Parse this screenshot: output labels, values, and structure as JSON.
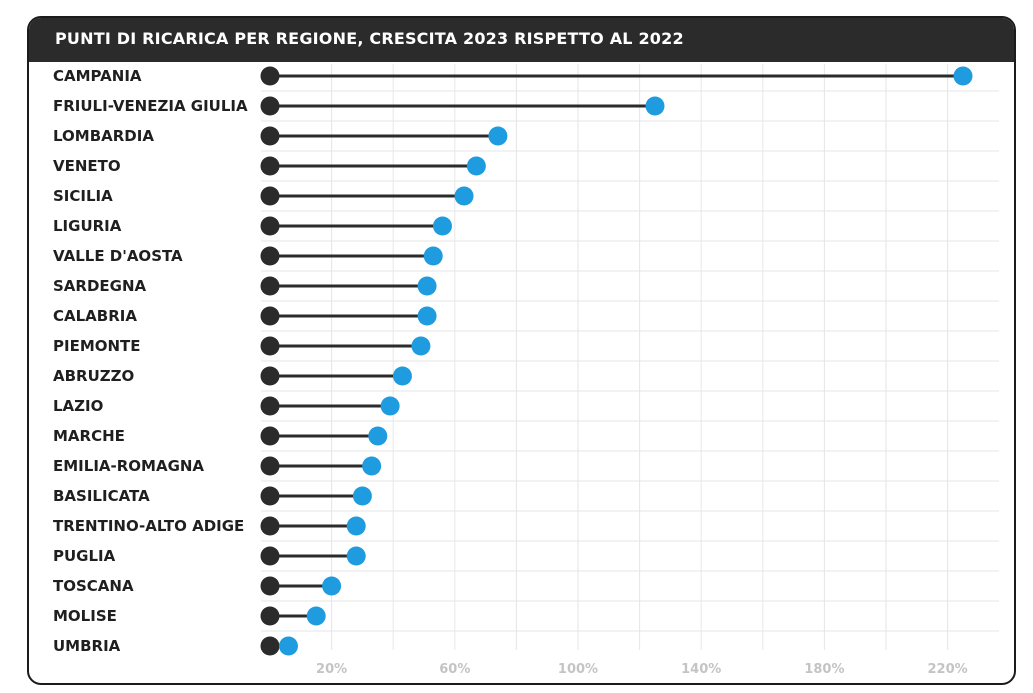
{
  "chart_data": {
    "type": "dot-plot",
    "title": "PUNTI DI RICARICA PER REGIONE, CRESCITA 2023 RISPETTO AL 2022",
    "xlabel": "",
    "ylabel": "",
    "xlim": [
      0,
      228
    ],
    "x_ticks": [
      {
        "value": 20,
        "label": "20%"
      },
      {
        "value": 60,
        "label": "60%"
      },
      {
        "value": 100,
        "label": "100%"
      },
      {
        "value": 140,
        "label": "140%"
      },
      {
        "value": 180,
        "label": "180%"
      },
      {
        "value": 220,
        "label": "220%"
      }
    ],
    "grid": true,
    "categories": [
      "CAMPANIA",
      "FRIULI-VENEZIA GIULIA",
      "LOMBARDIA",
      "VENETO",
      "SICILIA",
      "LIGURIA",
      "VALLE D'AOSTA",
      "SARDEGNA",
      "CALABRIA",
      "PIEMONTE",
      "ABRUZZO",
      "LAZIO",
      "MARCHE",
      "EMILIA-ROMAGNA",
      "BASILICATA",
      "TRENTINO-ALTO ADIGE",
      "PUGLIA",
      "TOSCANA",
      "MOLISE",
      "UMBRIA"
    ],
    "series": [
      {
        "name": "Crescita 2023 rispetto al 2022",
        "values": [
          225,
          125,
          74,
          67,
          63,
          56,
          53,
          51,
          51,
          49,
          43,
          39,
          35,
          33,
          30,
          28,
          28,
          20,
          15,
          6
        ]
      }
    ],
    "colors": {
      "start_dot": "#2b2b2b",
      "end_dot": "#1f9be0",
      "line": "#2b2b2b",
      "grid": "#e6e6e6",
      "header_bg": "#2b2b2b"
    }
  }
}
